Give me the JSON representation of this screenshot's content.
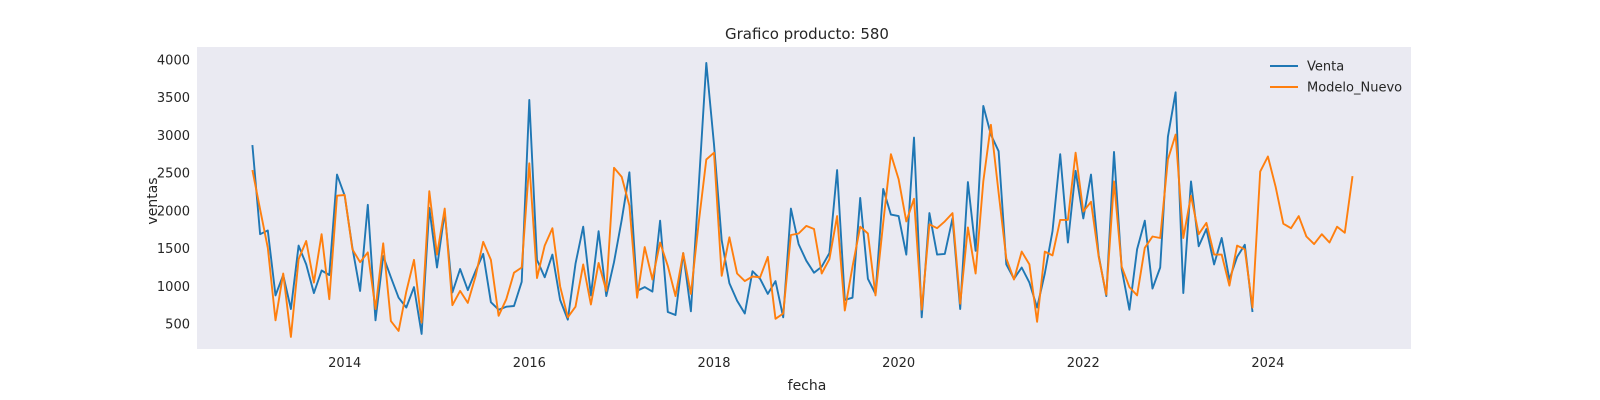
{
  "chart_data": {
    "type": "line",
    "title": "Grafico producto: 580",
    "xlabel": "fecha",
    "ylabel": "ventas",
    "xlim": [
      2012.4,
      2025.55
    ],
    "ylim": [
      170,
      4170
    ],
    "x_ticks": [
      2014,
      2016,
      2018,
      2020,
      2022,
      2024
    ],
    "y_ticks": [
      500,
      1000,
      1500,
      2000,
      2500,
      3000,
      3500,
      4000
    ],
    "grid": false,
    "background": "#eaeaf2",
    "legend_position": "top-right",
    "series": [
      {
        "name": "Venta",
        "color": "#1f77b4",
        "start": 2013.0,
        "step": 0.0833333,
        "values": [
          2870,
          1690,
          1740,
          880,
          1150,
          700,
          1540,
          1290,
          910,
          1210,
          1150,
          2480,
          2200,
          1510,
          940,
          2080,
          550,
          1400,
          1120,
          850,
          720,
          990,
          370,
          2040,
          1250,
          1980,
          920,
          1230,
          950,
          1200,
          1430,
          790,
          690,
          730,
          740,
          1060,
          3470,
          1350,
          1120,
          1420,
          820,
          560,
          1300,
          1790,
          880,
          1730,
          870,
          1320,
          1880,
          2510,
          940,
          990,
          930,
          1870,
          660,
          620,
          1440,
          670,
          2300,
          3960,
          2880,
          1610,
          1040,
          810,
          640,
          1200,
          1100,
          900,
          1070,
          590,
          2030,
          1560,
          1340,
          1180,
          1260,
          1440,
          2540,
          820,
          850,
          2170,
          1100,
          900,
          2290,
          1950,
          1930,
          1420,
          2970,
          590,
          1970,
          1420,
          1430,
          1900,
          700,
          2380,
          1470,
          3390,
          3010,
          2790,
          1290,
          1100,
          1250,
          1050,
          720,
          1170,
          1730,
          2750,
          1580,
          2530,
          1900,
          2480,
          1410,
          870,
          2780,
          1230,
          690,
          1490,
          1870,
          970,
          1250,
          2980,
          3570,
          910,
          2390,
          1530,
          1760,
          1290,
          1640,
          1090,
          1390,
          1550,
          660
        ]
      },
      {
        "name": "Modelo_Nuevo",
        "color": "#ff7f0e",
        "start": 2013.0,
        "step": 0.0833333,
        "values": [
          2540,
          2020,
          1510,
          550,
          1170,
          330,
          1360,
          1600,
          1050,
          1690,
          830,
          2200,
          2210,
          1490,
          1320,
          1450,
          700,
          1570,
          540,
          410,
          930,
          1350,
          520,
          2260,
          1420,
          2030,
          750,
          940,
          780,
          1130,
          1590,
          1350,
          610,
          830,
          1180,
          1250,
          2630,
          1110,
          1540,
          1770,
          1000,
          590,
          730,
          1290,
          760,
          1310,
          940,
          2570,
          2450,
          2070,
          850,
          1520,
          1090,
          1580,
          1270,
          870,
          1440,
          900,
          1830,
          2680,
          2770,
          1140,
          1650,
          1170,
          1070,
          1130,
          1120,
          1390,
          570,
          640,
          1680,
          1700,
          1800,
          1760,
          1170,
          1360,
          1930,
          680,
          1260,
          1790,
          1700,
          880,
          1840,
          2750,
          2420,
          1860,
          2160,
          690,
          1820,
          1770,
          1860,
          1970,
          770,
          1780,
          1170,
          2390,
          3140,
          2240,
          1370,
          1090,
          1460,
          1290,
          530,
          1460,
          1410,
          1880,
          1880,
          2770,
          1990,
          2120,
          1390,
          890,
          2390,
          1260,
          990,
          880,
          1510,
          1660,
          1640,
          2680,
          3010,
          1640,
          2200,
          1690,
          1840,
          1420,
          1420,
          1010,
          1540,
          1490,
          720,
          2520,
          2720,
          2320,
          1830,
          1770,
          1930,
          1660,
          1560,
          1690,
          1580,
          1790,
          1710,
          2460
        ]
      }
    ]
  }
}
